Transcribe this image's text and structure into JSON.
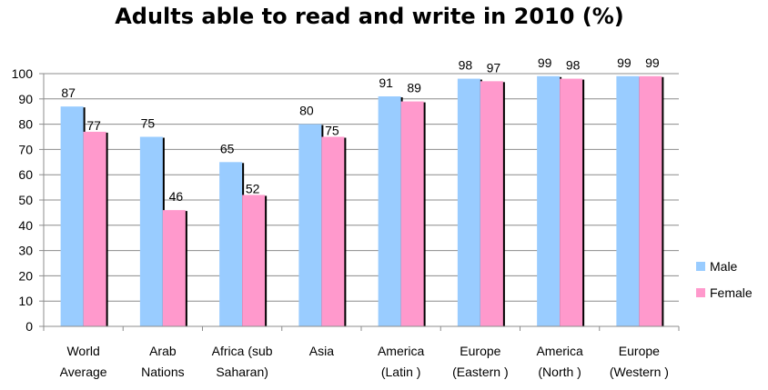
{
  "chart_data": {
    "type": "bar",
    "title": "Adults able to read and write in 2010 (%)",
    "xlabel": "",
    "ylabel": "",
    "ylim": [
      0,
      100
    ],
    "yticks": [
      0,
      10,
      20,
      30,
      40,
      50,
      60,
      70,
      80,
      90,
      100
    ],
    "grid": true,
    "legend_position": "right",
    "categories": [
      [
        "World",
        "Average"
      ],
      [
        "Arab",
        "Nations"
      ],
      [
        "Africa (sub",
        "Saharan)"
      ],
      [
        "Asia"
      ],
      [
        "America",
        "(Latin )"
      ],
      [
        "Europe",
        "(Eastern )"
      ],
      [
        "America",
        "(North )"
      ],
      [
        "Europe",
        "(Western )"
      ]
    ],
    "series": [
      {
        "name": "Male",
        "color": "#99ccff",
        "values": [
          87,
          75,
          65,
          80,
          91,
          98,
          99,
          99
        ]
      },
      {
        "name": "Female",
        "color": "#ff99cc",
        "values": [
          77,
          46,
          52,
          75,
          89,
          97,
          98,
          99
        ]
      }
    ]
  }
}
